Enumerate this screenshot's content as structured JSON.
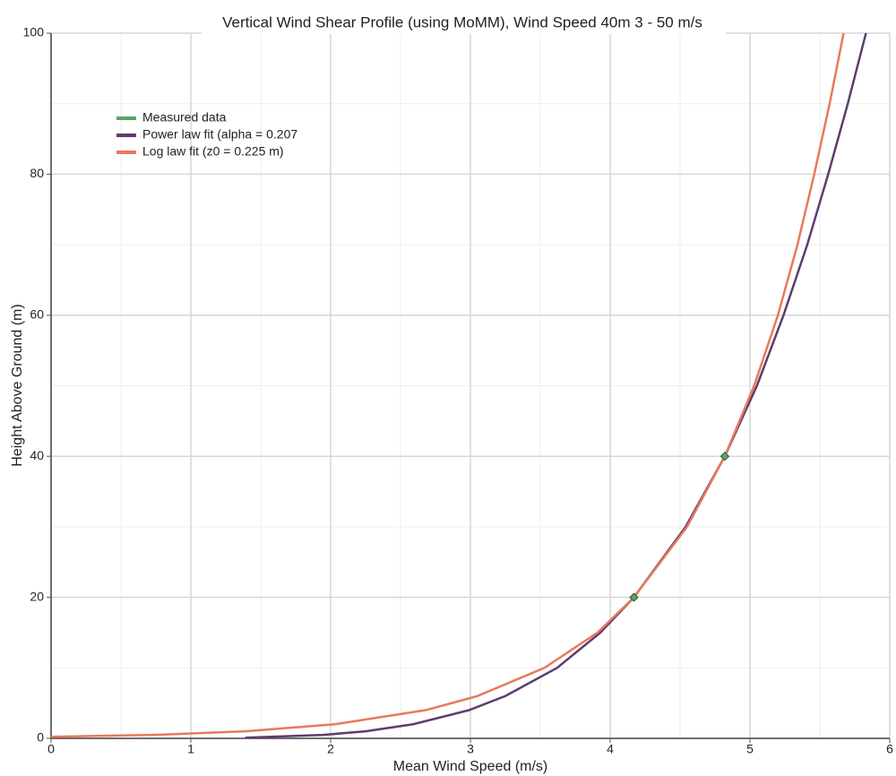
{
  "chart_data": {
    "type": "line",
    "title": "Vertical Wind Shear Profile (using MoMM), Wind Speed 40m 3 - 50 m/s",
    "x_label": "Mean Wind Speed (m/s)",
    "y_label": "Height Above Ground (m)",
    "xlim": [
      0,
      6
    ],
    "ylim": [
      0,
      100
    ],
    "xticks": [
      0,
      1,
      2,
      3,
      4,
      5,
      6
    ],
    "yticks": [
      0,
      20,
      40,
      60,
      80,
      100
    ],
    "grid": true,
    "series": [
      {
        "name": "Measured data",
        "color": "#5aa469",
        "style": "markers",
        "x": [
          4.17,
          4.82
        ],
        "values": [
          20,
          40
        ]
      },
      {
        "name": "Power law fit (alpha = 0.207",
        "color": "#5e3c6e",
        "style": "line",
        "x": [
          1.39,
          1.95,
          2.25,
          2.59,
          2.99,
          3.25,
          3.62,
          3.93,
          4.17,
          4.54,
          4.82,
          5.05,
          5.24,
          5.41,
          5.56,
          5.7,
          5.83
        ],
        "values": [
          0.1,
          0.5,
          1,
          2,
          4,
          6,
          10,
          15,
          20,
          30,
          40,
          50,
          60,
          70,
          80,
          90,
          100
        ]
      },
      {
        "name": "Log law fit (z0  = 0.225 m)",
        "color": "#e8795a",
        "style": "line",
        "x": [
          0,
          0.74,
          1.39,
          2.03,
          2.68,
          3.05,
          3.53,
          3.91,
          4.17,
          4.55,
          4.82,
          5.03,
          5.2,
          5.34,
          5.46,
          5.57,
          5.67
        ],
        "values": [
          0.225,
          0.5,
          1,
          2,
          4,
          6,
          10,
          15,
          20,
          30,
          40,
          50,
          60,
          70,
          80,
          90,
          100
        ]
      }
    ]
  }
}
